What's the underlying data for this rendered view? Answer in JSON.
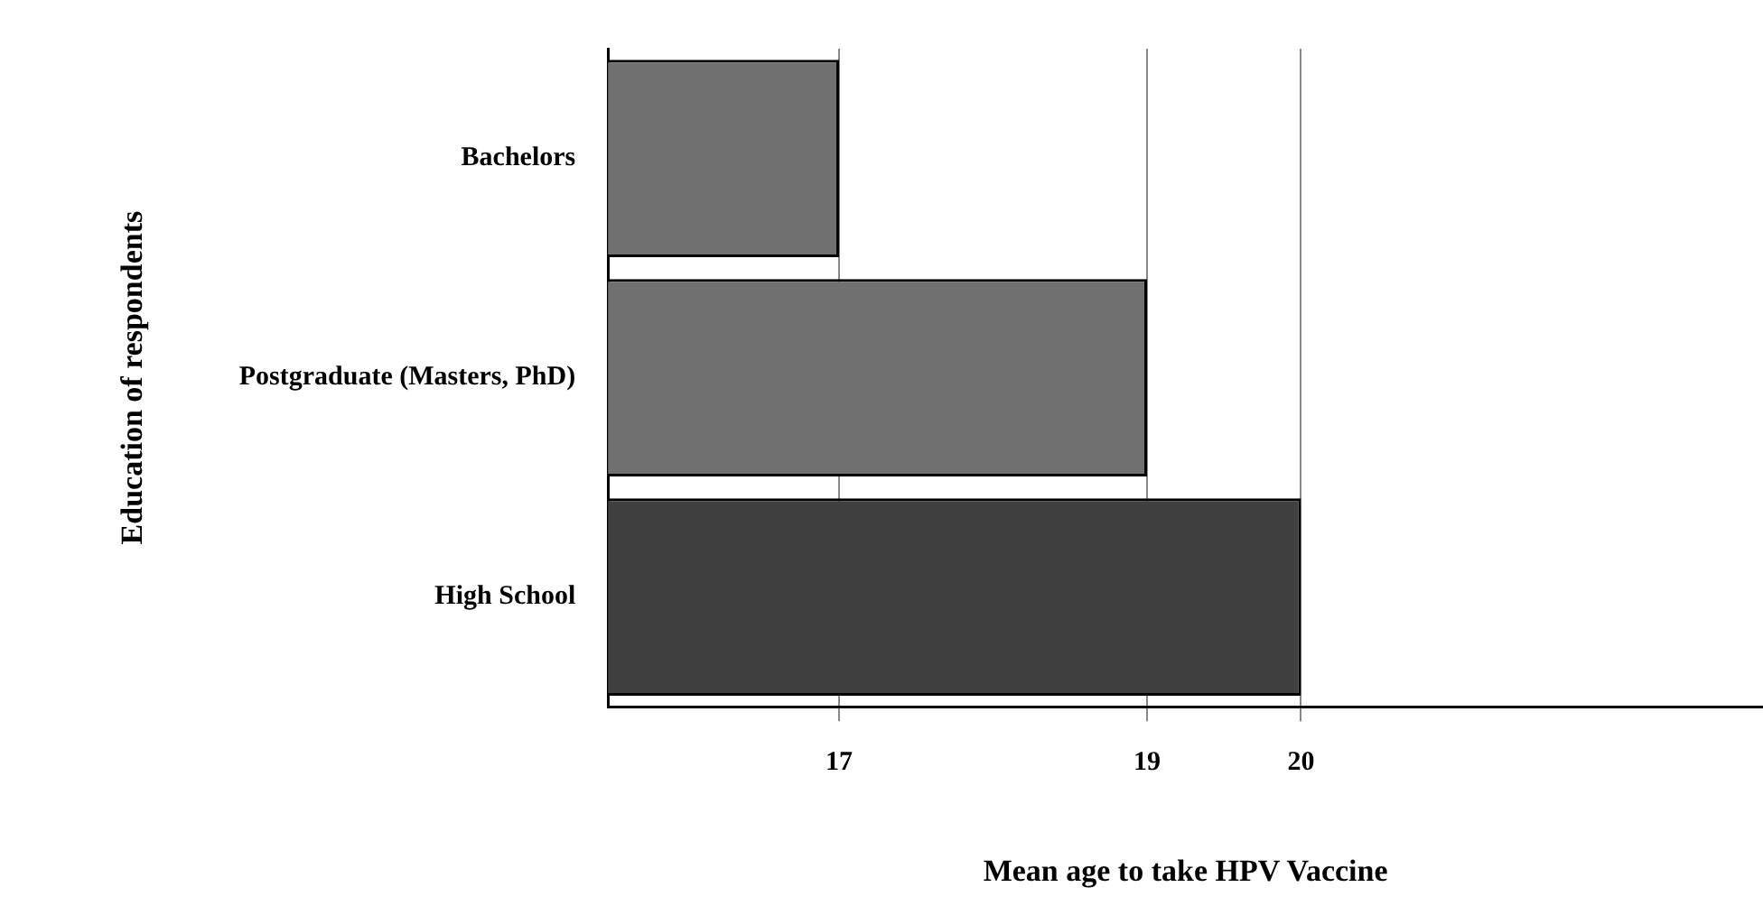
{
  "chart_data": {
    "type": "bar",
    "orientation": "horizontal",
    "xlabel": "Mean age to take HPV Vaccine",
    "ylabel": "Education of respondents",
    "categories": [
      "Bachelors",
      "Postgraduate (Masters, PhD)",
      "High School"
    ],
    "values": [
      17,
      19,
      20
    ],
    "colors": [
      "#707070",
      "#707070",
      "#404040"
    ],
    "xlim": [
      15.5,
      23
    ],
    "xticks": [
      17,
      19,
      20
    ],
    "grid": "x"
  }
}
